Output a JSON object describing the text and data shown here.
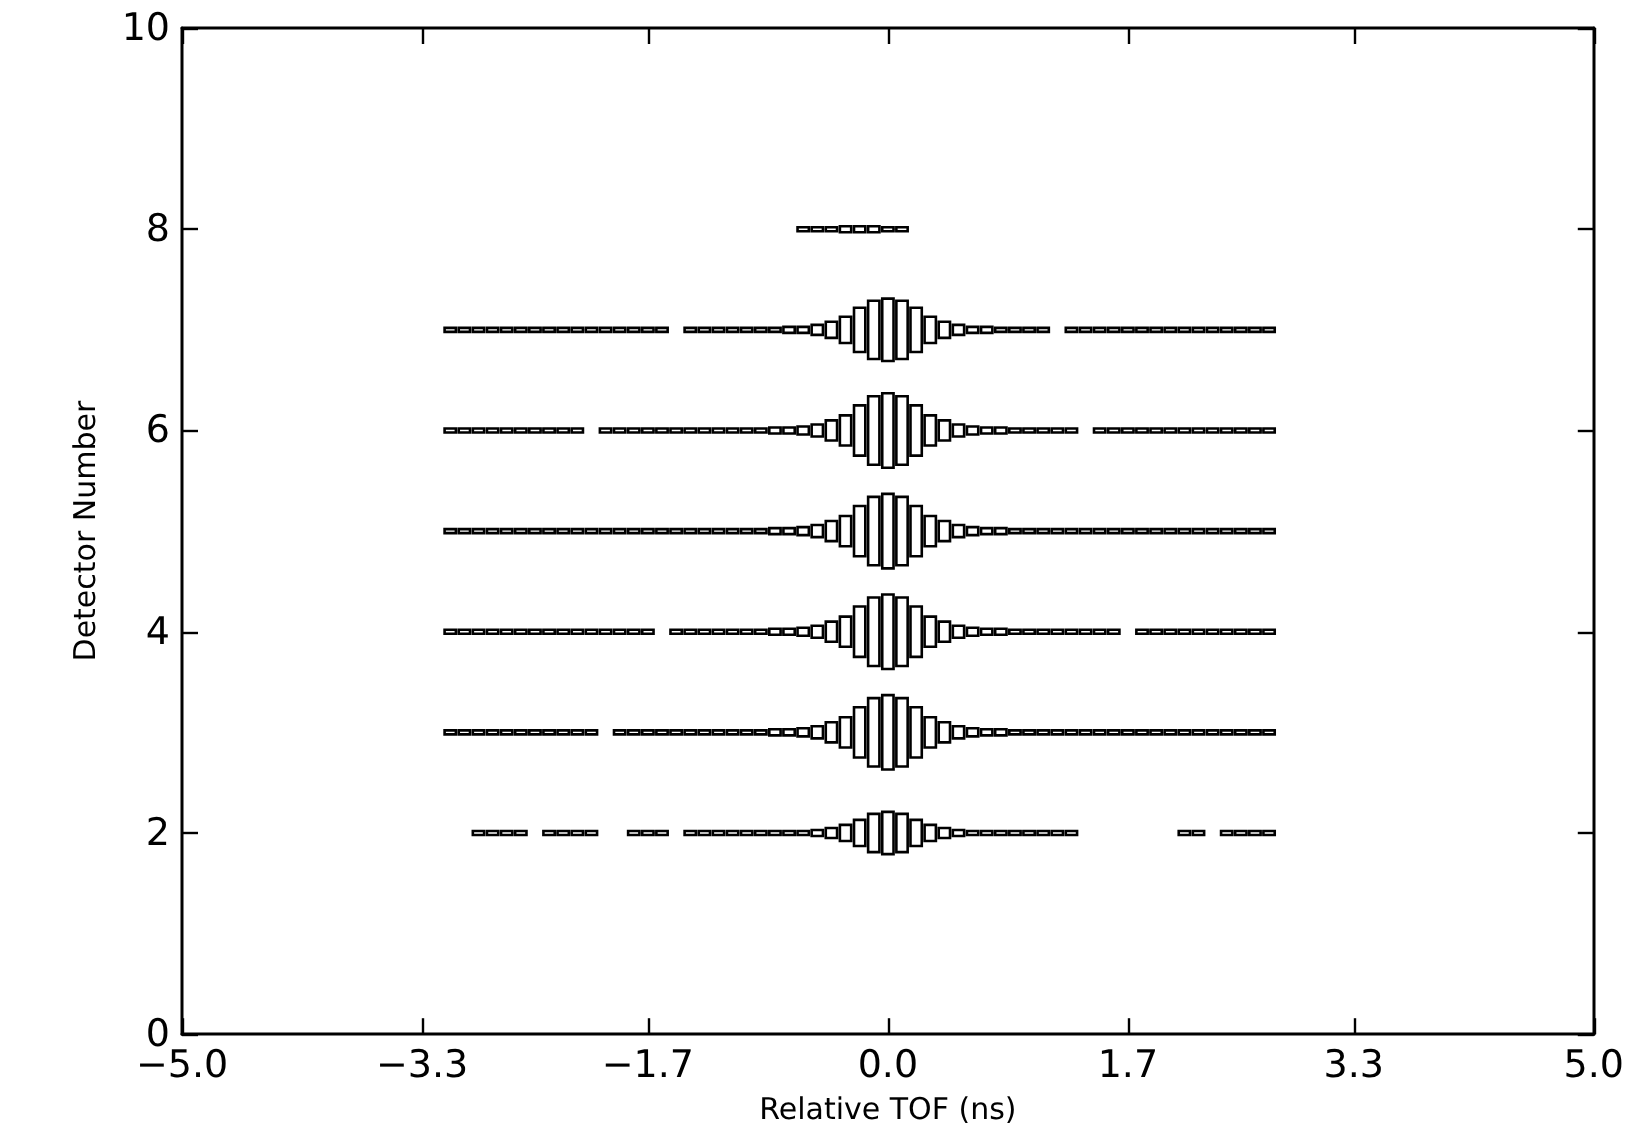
{
  "chart_data": {
    "type": "bar",
    "xlabel": "Relative TOF (ns)",
    "ylabel": "Detector Number",
    "xlim": [
      -5,
      5
    ],
    "xticks": [
      {
        "value": -5,
        "label": "−5.0"
      },
      {
        "value": -3.3,
        "label": "−3.3"
      },
      {
        "value": -1.7,
        "label": "−1.7"
      },
      {
        "value": 0,
        "label": "0.0"
      },
      {
        "value": 1.7,
        "label": "1.7"
      },
      {
        "value": 3.3,
        "label": "3.3"
      },
      {
        "value": 5,
        "label": "5.0"
      }
    ],
    "ylim": [
      0,
      10
    ],
    "yticks": [
      0,
      2,
      4,
      6,
      8,
      10
    ],
    "grid": false,
    "x": [
      -3.1,
      -3.0,
      -2.9,
      -2.8,
      -2.7,
      -2.6,
      -2.5,
      -2.4,
      -2.3,
      -2.2,
      -2.1,
      -2.0,
      -1.9,
      -1.8,
      -1.7,
      -1.6,
      -1.5,
      -1.4,
      -1.3,
      -1.2,
      -1.1,
      -1.0,
      -0.9,
      -0.8,
      -0.7,
      -0.6,
      -0.5,
      -0.4,
      -0.3,
      -0.2,
      -0.1,
      0.0,
      0.1,
      0.2,
      0.3,
      0.4,
      0.5,
      0.6,
      0.7,
      0.8,
      0.9,
      1.0,
      1.1,
      1.2,
      1.3,
      1.4,
      1.5,
      1.6,
      1.7,
      1.8,
      1.9,
      2.0,
      2.1,
      2.2,
      2.3,
      2.4,
      2.5,
      2.6,
      2.7
    ],
    "series": [
      {
        "color": "#000000",
        "values": [
          null,
          null,
          0.04,
          0.04,
          0.04,
          0.04,
          null,
          0.04,
          0.04,
          0.04,
          0.04,
          null,
          null,
          0.04,
          0.04,
          0.04,
          null,
          0.04,
          0.04,
          0.04,
          0.04,
          0.04,
          0.04,
          0.04,
          0.04,
          0.04,
          0.06,
          0.1,
          0.16,
          0.26,
          0.38,
          0.42,
          0.38,
          0.26,
          0.16,
          0.1,
          0.06,
          0.04,
          0.04,
          0.04,
          0.04,
          0.04,
          0.04,
          0.04,
          0.04,
          null,
          null,
          null,
          null,
          null,
          null,
          null,
          0.04,
          0.04,
          null,
          0.04,
          0.04,
          0.04,
          0.04
        ],
        "base": [
          null,
          null,
          1.98,
          1.98,
          1.98,
          1.98,
          null,
          1.98,
          1.98,
          1.98,
          1.98,
          null,
          null,
          1.98,
          1.98,
          1.98,
          null,
          1.98,
          1.98,
          1.98,
          1.98,
          1.98,
          1.98,
          1.98,
          1.98,
          1.98,
          1.97,
          1.95,
          1.92,
          1.87,
          1.81,
          1.79,
          1.81,
          1.87,
          1.92,
          1.95,
          1.97,
          1.98,
          1.98,
          1.98,
          1.98,
          1.98,
          1.98,
          1.98,
          1.98,
          null,
          null,
          null,
          null,
          null,
          null,
          null,
          1.98,
          1.98,
          null,
          1.98,
          1.98,
          1.98,
          1.98
        ]
      },
      {
        "color": "#000000",
        "values": [
          0.04,
          0.04,
          0.04,
          0.04,
          0.04,
          0.04,
          0.04,
          0.04,
          0.04,
          0.04,
          0.04,
          null,
          0.04,
          0.04,
          0.04,
          0.04,
          0.04,
          0.04,
          0.04,
          0.04,
          0.04,
          0.04,
          0.04,
          0.06,
          0.06,
          0.08,
          0.12,
          0.2,
          0.3,
          0.5,
          0.68,
          0.74,
          0.68,
          0.5,
          0.3,
          0.2,
          0.12,
          0.08,
          0.06,
          0.06,
          0.04,
          0.04,
          0.04,
          0.04,
          0.04,
          0.04,
          0.04,
          0.04,
          0.04,
          0.04,
          0.04,
          0.04,
          0.04,
          0.04,
          0.04,
          0.04,
          0.04,
          0.04,
          0.04
        ],
        "base": [
          2.98,
          2.98,
          2.98,
          2.98,
          2.98,
          2.98,
          2.98,
          2.98,
          2.98,
          2.98,
          2.98,
          null,
          2.98,
          2.98,
          2.98,
          2.98,
          2.98,
          2.98,
          2.98,
          2.98,
          2.98,
          2.98,
          2.98,
          2.97,
          2.97,
          2.96,
          2.94,
          2.9,
          2.85,
          2.75,
          2.66,
          2.63,
          2.66,
          2.75,
          2.85,
          2.9,
          2.94,
          2.96,
          2.97,
          2.97,
          2.98,
          2.98,
          2.98,
          2.98,
          2.98,
          2.98,
          2.98,
          2.98,
          2.98,
          2.98,
          2.98,
          2.98,
          2.98,
          2.98,
          2.98,
          2.98,
          2.98,
          2.98,
          2.98
        ]
      },
      {
        "color": "#000000",
        "values": [
          0.04,
          0.04,
          0.04,
          0.04,
          0.04,
          0.04,
          0.04,
          0.04,
          0.04,
          0.04,
          0.04,
          0.04,
          0.04,
          0.04,
          0.04,
          null,
          0.04,
          0.04,
          0.04,
          0.04,
          0.04,
          0.04,
          0.04,
          0.06,
          0.06,
          0.08,
          0.12,
          0.2,
          0.3,
          0.5,
          0.68,
          0.74,
          0.68,
          0.5,
          0.3,
          0.2,
          0.12,
          0.08,
          0.06,
          0.06,
          0.04,
          0.04,
          0.04,
          0.04,
          0.04,
          0.04,
          0.04,
          0.04,
          null,
          0.04,
          0.04,
          0.04,
          0.04,
          0.04,
          0.04,
          0.04,
          0.04,
          0.04,
          0.04
        ],
        "base": [
          3.98,
          3.98,
          3.98,
          3.98,
          3.98,
          3.98,
          3.98,
          3.98,
          3.98,
          3.98,
          3.98,
          3.98,
          3.98,
          3.98,
          3.98,
          null,
          3.98,
          3.98,
          3.98,
          3.98,
          3.98,
          3.98,
          3.98,
          3.97,
          3.97,
          3.96,
          3.94,
          3.9,
          3.85,
          3.75,
          3.66,
          3.63,
          3.66,
          3.75,
          3.85,
          3.9,
          3.94,
          3.96,
          3.97,
          3.97,
          3.98,
          3.98,
          3.98,
          3.98,
          3.98,
          3.98,
          3.98,
          3.98,
          null,
          3.98,
          3.98,
          3.98,
          3.98,
          3.98,
          3.98,
          3.98,
          3.98,
          3.98,
          3.98
        ]
      },
      {
        "color": "#000000",
        "values": [
          0.04,
          0.04,
          0.04,
          0.04,
          0.04,
          0.04,
          0.04,
          0.04,
          0.04,
          0.04,
          0.04,
          0.04,
          0.04,
          0.04,
          0.04,
          0.04,
          0.04,
          0.04,
          0.04,
          0.04,
          0.04,
          0.04,
          0.04,
          0.06,
          0.06,
          0.08,
          0.12,
          0.2,
          0.3,
          0.5,
          0.68,
          0.74,
          0.68,
          0.5,
          0.3,
          0.2,
          0.12,
          0.08,
          0.06,
          0.06,
          0.04,
          0.04,
          0.04,
          0.04,
          0.04,
          0.04,
          0.04,
          0.04,
          0.04,
          0.04,
          0.04,
          0.04,
          0.04,
          0.04,
          0.04,
          0.04,
          0.04,
          0.04,
          0.04
        ],
        "base": [
          4.98,
          4.98,
          4.98,
          4.98,
          4.98,
          4.98,
          4.98,
          4.98,
          4.98,
          4.98,
          4.98,
          4.98,
          4.98,
          4.98,
          4.98,
          4.98,
          4.98,
          4.98,
          4.98,
          4.98,
          4.98,
          4.98,
          4.98,
          4.97,
          4.97,
          4.96,
          4.94,
          4.9,
          4.85,
          4.75,
          4.66,
          4.63,
          4.66,
          4.75,
          4.85,
          4.9,
          4.94,
          4.96,
          4.97,
          4.97,
          4.98,
          4.98,
          4.98,
          4.98,
          4.98,
          4.98,
          4.98,
          4.98,
          4.98,
          4.98,
          4.98,
          4.98,
          4.98,
          4.98,
          4.98,
          4.98,
          4.98,
          4.98,
          4.98
        ]
      },
      {
        "color": "#000000",
        "values": [
          0.04,
          0.04,
          0.04,
          0.04,
          0.04,
          0.04,
          0.04,
          0.04,
          0.04,
          0.04,
          null,
          0.04,
          0.04,
          0.04,
          0.04,
          0.04,
          0.04,
          0.04,
          0.04,
          0.04,
          0.04,
          0.04,
          0.04,
          0.06,
          0.06,
          0.08,
          0.12,
          0.2,
          0.3,
          0.5,
          0.68,
          0.74,
          0.68,
          0.5,
          0.3,
          0.2,
          0.12,
          0.08,
          0.06,
          0.06,
          0.04,
          0.04,
          0.04,
          0.04,
          0.04,
          null,
          0.04,
          0.04,
          0.04,
          0.04,
          0.04,
          0.04,
          0.04,
          0.04,
          0.04,
          0.04,
          0.04,
          0.04,
          0.04
        ],
        "base": [
          5.98,
          5.98,
          5.98,
          5.98,
          5.98,
          5.98,
          5.98,
          5.98,
          5.98,
          5.98,
          null,
          5.98,
          5.98,
          5.98,
          5.98,
          5.98,
          5.98,
          5.98,
          5.98,
          5.98,
          5.98,
          5.98,
          5.98,
          5.97,
          5.97,
          5.96,
          5.94,
          5.9,
          5.85,
          5.75,
          5.66,
          5.63,
          5.66,
          5.75,
          5.85,
          5.9,
          5.94,
          5.96,
          5.97,
          5.97,
          5.98,
          5.98,
          5.98,
          5.98,
          5.98,
          null,
          5.98,
          5.98,
          5.98,
          5.98,
          5.98,
          5.98,
          5.98,
          5.98,
          5.98,
          5.98,
          5.98,
          5.98,
          5.98
        ]
      },
      {
        "color": "#000000",
        "values": [
          0.04,
          0.04,
          0.04,
          0.04,
          0.04,
          0.04,
          0.04,
          0.04,
          0.04,
          0.04,
          0.04,
          0.04,
          0.04,
          0.04,
          0.04,
          0.04,
          null,
          0.04,
          0.04,
          0.04,
          0.04,
          0.04,
          0.04,
          0.04,
          0.06,
          0.06,
          0.1,
          0.16,
          0.26,
          0.44,
          0.58,
          0.62,
          0.58,
          0.44,
          0.26,
          0.16,
          0.1,
          0.06,
          0.06,
          0.04,
          0.04,
          0.04,
          0.04,
          null,
          0.04,
          0.04,
          0.04,
          0.04,
          0.04,
          0.04,
          0.04,
          0.04,
          0.04,
          0.04,
          0.04,
          0.04,
          0.04,
          0.04,
          0.04
        ],
        "base": [
          6.98,
          6.98,
          6.98,
          6.98,
          6.98,
          6.98,
          6.98,
          6.98,
          6.98,
          6.98,
          6.98,
          6.98,
          6.98,
          6.98,
          6.98,
          6.98,
          null,
          6.98,
          6.98,
          6.98,
          6.98,
          6.98,
          6.98,
          6.98,
          6.97,
          6.97,
          6.95,
          6.92,
          6.87,
          6.78,
          6.71,
          6.69,
          6.71,
          6.78,
          6.87,
          6.92,
          6.95,
          6.97,
          6.97,
          6.98,
          6.98,
          6.98,
          6.98,
          null,
          6.98,
          6.98,
          6.98,
          6.98,
          6.98,
          6.98,
          6.98,
          6.98,
          6.98,
          6.98,
          6.98,
          6.98,
          6.98,
          6.98,
          6.98
        ]
      },
      {
        "color": "#000000",
        "x": [
          -0.6,
          -0.5,
          -0.4,
          -0.3,
          -0.2,
          -0.1,
          0.0,
          0.1
        ],
        "values": [
          0.04,
          0.04,
          0.04,
          0.06,
          0.06,
          0.06,
          0.04,
          0.04
        ],
        "base": [
          7.98,
          7.98,
          7.98,
          7.97,
          7.97,
          7.97,
          7.98,
          7.98
        ]
      }
    ]
  }
}
